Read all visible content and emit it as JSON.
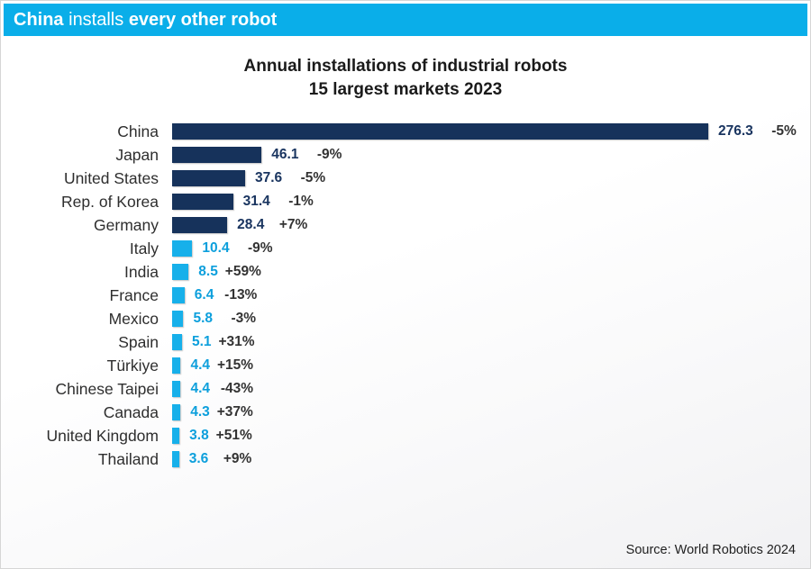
{
  "banner": {
    "text_bold_1": "China",
    "text_regular": " installs ",
    "text_bold_2": "every other robot",
    "background": "#0aaee9"
  },
  "chart_data": {
    "type": "bar",
    "orientation": "horizontal",
    "title": "Annual installations of industrial robots",
    "subtitle": "15 largest markets 2023",
    "categories": [
      "China",
      "Japan",
      "United States",
      "Rep. of Korea",
      "Germany",
      "Italy",
      "India",
      "France",
      "Mexico",
      "Spain",
      "Türkiye",
      "Chinese Taipei",
      "Canada",
      "United Kingdom",
      "Thailand"
    ],
    "values": [
      276.3,
      46.1,
      37.6,
      31.4,
      28.4,
      10.4,
      8.5,
      6.4,
      5.8,
      5.1,
      4.4,
      4.4,
      4.3,
      3.8,
      3.6
    ],
    "value_labels": [
      "276.3",
      "46.1",
      "37.6",
      "31.4",
      "28.4",
      "10.4",
      "8.5",
      "6.4",
      "5.8",
      "5.1",
      "4.4",
      "4.4",
      "4.3",
      "3.8",
      "3.6"
    ],
    "change_pct": [
      "-5%",
      "-9%",
      "-5%",
      "-1%",
      "+7%",
      "-9%",
      "+59%",
      "-13%",
      "-3%",
      "+31%",
      "+15%",
      "-43%",
      "+37%",
      "+51%",
      "+9%"
    ],
    "xlim": [
      0,
      276.3
    ],
    "grid": false,
    "legend": false,
    "split_index": 5,
    "colors": {
      "top_bars": "#16325b",
      "other_bars": "#17b0ea",
      "top_values": "#1a3560",
      "other_values": "#0c9fdc",
      "pct": "#333333"
    }
  },
  "source": {
    "text": "Source: World Robotics 2024"
  }
}
